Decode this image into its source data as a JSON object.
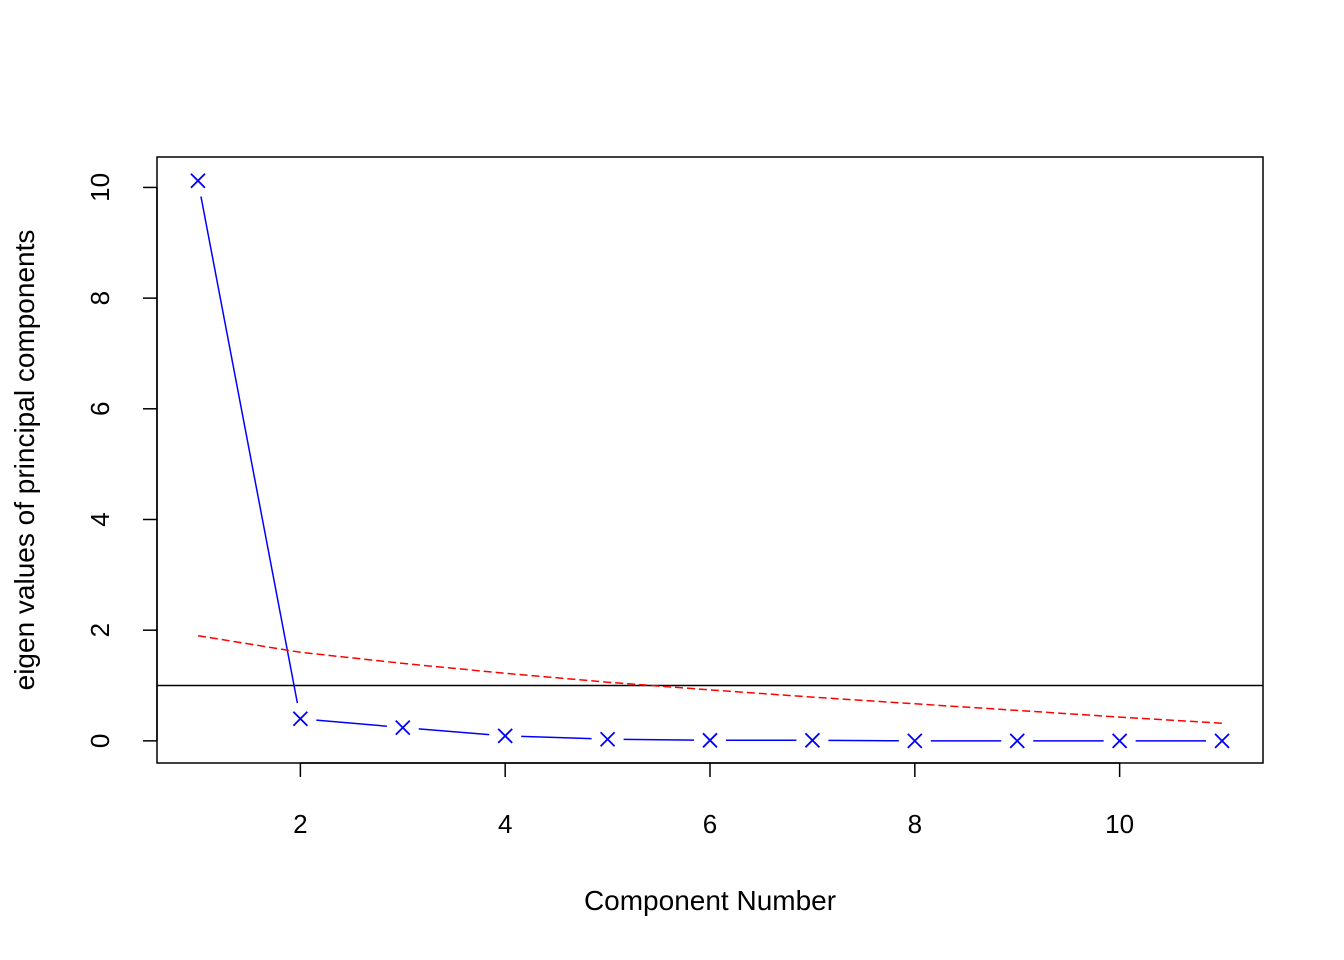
{
  "chart_data": {
    "type": "line",
    "title": "",
    "xlabel": "Component Number",
    "ylabel": "eigen values of principal components",
    "xlim": [
      0.6,
      11.4
    ],
    "ylim": [
      -0.4,
      10.55
    ],
    "x_ticks": [
      2,
      4,
      6,
      8,
      10
    ],
    "y_ticks": [
      0,
      2,
      4,
      6,
      8,
      10
    ],
    "grid": false,
    "x": [
      1,
      2,
      3,
      4,
      5,
      6,
      7,
      8,
      9,
      10,
      11
    ],
    "series": [
      {
        "role": "eigenvalues",
        "values": [
          10.12,
          0.4,
          0.24,
          0.09,
          0.03,
          0.01,
          0.01,
          0.0,
          0.0,
          0.0,
          0.0
        ],
        "color": "#0000ff",
        "line_style": "solid",
        "marker": "x"
      },
      {
        "role": "reference",
        "values": [
          1.9,
          1.6,
          1.4,
          1.22,
          1.06,
          0.92,
          0.79,
          0.67,
          0.55,
          0.43,
          0.32
        ],
        "color": "#ff0000",
        "line_style": "dashed",
        "marker": "none"
      }
    ],
    "hline": {
      "y": 1,
      "color": "#000000"
    }
  }
}
